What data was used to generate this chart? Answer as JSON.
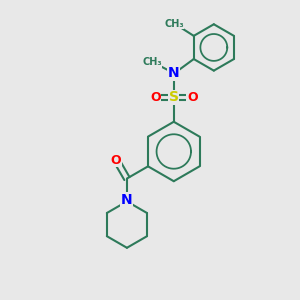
{
  "background_color": "#e8e8e8",
  "bond_color": "#2d7a5a",
  "N_color": "#0000ff",
  "O_color": "#ff0000",
  "S_color": "#cccc00",
  "line_width": 1.5,
  "figsize": [
    3.0,
    3.0
  ],
  "dpi": 100,
  "xlim": [
    0,
    10
  ],
  "ylim": [
    0,
    10
  ]
}
